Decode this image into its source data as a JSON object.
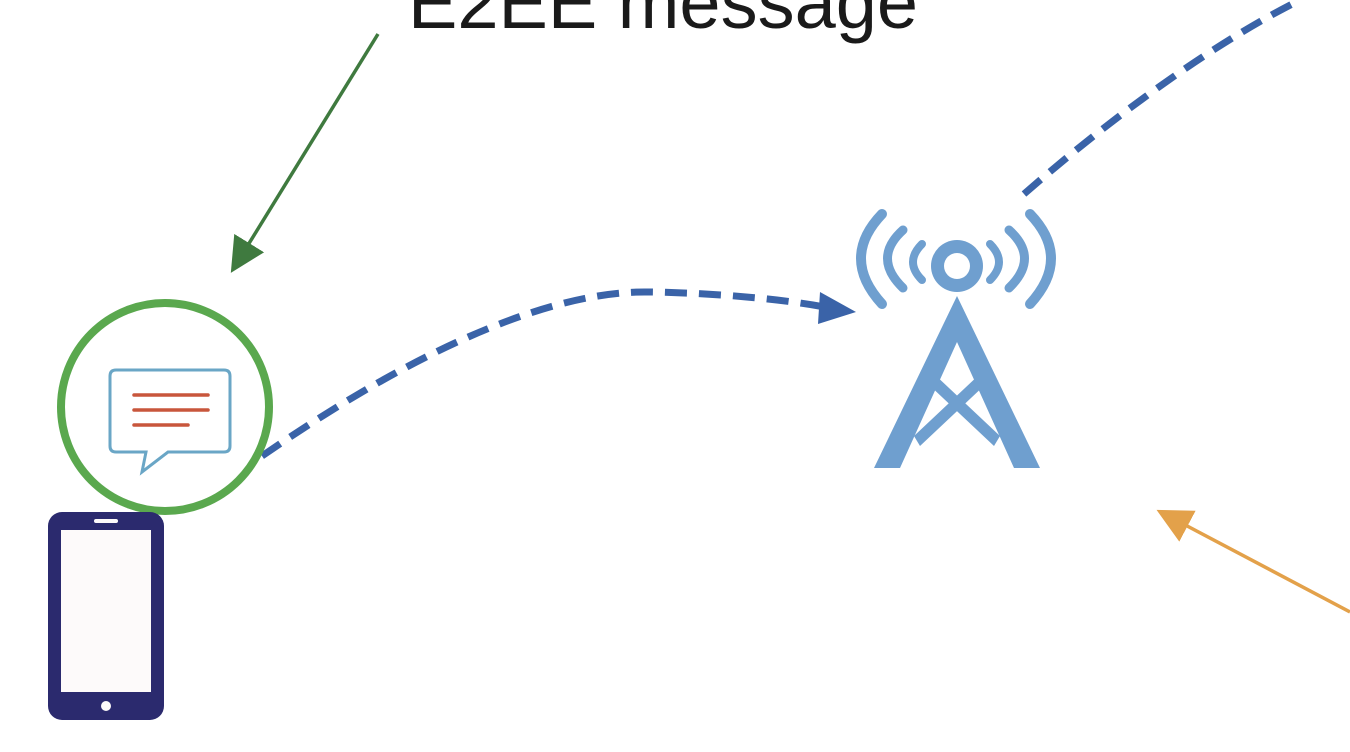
{
  "caption": "E2EE message",
  "colors": {
    "background": "#ffffff",
    "caption_arrow": "#3f7a3f",
    "message_ring": "#5aa84e",
    "message_bubble_outline": "#6aa6c6",
    "message_lines": "#c8563c",
    "phone_body": "#2b2a6e",
    "phone_screen": "#fdfafa",
    "link_line": "#3a63a8",
    "tower": "#6f9fcf",
    "tower_shadow": "#4a6f95",
    "incoming_arrow": "#e3a14a"
  },
  "icons": {
    "phone": "smartphone-icon",
    "message": "chat-bubble-icon",
    "tower": "radio-tower-icon"
  }
}
